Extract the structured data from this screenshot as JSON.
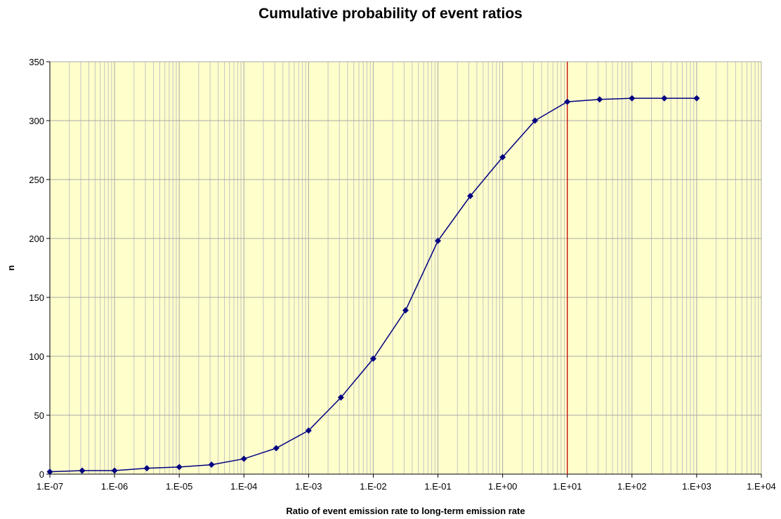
{
  "chart_data": {
    "type": "line",
    "title": "Cumulative probability of event ratios",
    "xlabel": "Ratio of event emission rate to long-term emission rate",
    "ylabel": "n",
    "x_scale": "log",
    "xlim": [
      1e-07,
      10000.0
    ],
    "ylim": [
      0,
      350
    ],
    "x_tick_labels": [
      "1.E-07",
      "1.E-06",
      "1.E-05",
      "1.E-04",
      "1.E-03",
      "1.E-02",
      "1.E-01",
      "1.E+00",
      "1.E+01",
      "1.E+02",
      "1.E+03",
      "1.E+04"
    ],
    "y_ticks": [
      0,
      50,
      100,
      150,
      200,
      250,
      300,
      350
    ],
    "grid": true,
    "plot_background": "#ffffcc",
    "series": [
      {
        "color": "#000080",
        "marker": "diamond",
        "x": [
          1e-07,
          3.16e-07,
          1e-06,
          3.16e-06,
          1e-05,
          3.16e-05,
          0.0001,
          0.000316,
          0.001,
          0.00316,
          0.01,
          0.0316,
          0.1,
          0.316,
          1,
          3.16,
          10,
          31.6,
          100,
          316,
          1000
        ],
        "y": [
          2,
          3,
          3,
          5,
          6,
          8,
          13,
          22,
          37,
          65,
          98,
          139,
          198,
          236,
          269,
          300,
          316,
          318,
          319,
          319,
          319
        ]
      }
    ],
    "reference_line": {
      "x": 10,
      "color": "#cc0000"
    }
  }
}
